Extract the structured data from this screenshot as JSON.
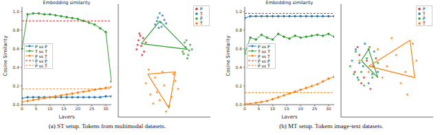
{
  "captions": [
    "(a) ST setup. Tokens from multimodal datasets.",
    "(b) MT setup. Tokens image-text datasets."
  ],
  "chart_data": [
    {
      "type": "line",
      "title": "Embedding similarity",
      "x_label": "Layers",
      "y_label": "Cosine Similarity",
      "legend": "center left",
      "grid": false,
      "x": [
        0,
        2,
        4,
        6,
        8,
        10,
        12,
        14,
        16,
        18,
        20,
        22,
        24,
        26,
        28,
        30,
        32
      ],
      "xlim": [
        0,
        32
      ],
      "xticks": [
        0,
        5,
        10,
        15,
        20,
        25,
        30
      ],
      "ylim": [
        0,
        1.05
      ],
      "yticks": [
        {
          "value": 0,
          "label": "0.0"
        },
        0.2,
        0.4,
        0.6,
        0.8,
        {
          "value": 1,
          "label": "1.0"
        }
      ],
      "series": [
        {
          "name": "P vs P",
          "color": "#1f77b4",
          "marker": "circle",
          "line_style": "solid",
          "values": [
            0.07,
            0.08,
            0.08,
            0.08,
            0.08,
            0.08,
            0.08,
            0.08,
            0.08,
            0.08,
            0.08,
            0.08,
            0.08,
            0.08,
            0.08,
            0.09,
            0.09
          ]
        },
        {
          "name": "T vs T",
          "color": "#2ca02c",
          "marker": "circle",
          "line_style": "solid",
          "values": [
            0.6,
            0.97,
            0.98,
            0.98,
            0.97,
            0.97,
            0.96,
            0.95,
            0.94,
            0.93,
            0.92,
            0.9,
            0.88,
            0.86,
            0.82,
            0.78,
            0.25
          ]
        },
        {
          "name": "P vs T",
          "color": "#ff7f0e",
          "marker": "circle",
          "line_style": "solid",
          "values": [
            0.03,
            0.04,
            0.05,
            0.06,
            0.07,
            0.08,
            0.09,
            0.1,
            0.11,
            0.12,
            0.13,
            0.14,
            0.15,
            0.16,
            0.17,
            0.18,
            0.19
          ]
        },
        {
          "name": "P̄ vs P̄",
          "color": "#d62728",
          "marker": "none",
          "line_style": "dashed",
          "values": [
            0.9,
            0.9,
            0.9,
            0.9,
            0.9,
            0.9,
            0.9,
            0.9,
            0.9,
            0.9,
            0.9,
            0.9,
            0.9,
            0.9,
            0.9,
            0.9,
            0.9
          ]
        },
        {
          "name": "P̄ vs T̄",
          "color": "#ff7f0e",
          "marker": "none",
          "line_style": "dashed",
          "values": [
            0.17,
            0.17,
            0.17,
            0.17,
            0.17,
            0.17,
            0.17,
            0.17,
            0.17,
            0.17,
            0.17,
            0.17,
            0.17,
            0.17,
            0.17,
            0.17,
            0.17
          ]
        }
      ]
    },
    {
      "type": "scatter",
      "legend": "upper right",
      "tick_labels": false,
      "xlim": [
        0,
        100
      ],
      "ylim": [
        0,
        100
      ],
      "series": [
        {
          "name": "P",
          "color": "#d62728",
          "x": [
            20,
            22,
            25,
            27,
            24,
            28,
            30,
            21,
            26,
            23
          ],
          "y": [
            60,
            68,
            63,
            70,
            72,
            58,
            66,
            64,
            55,
            74
          ]
        },
        {
          "name": "T",
          "color": "#1f77b4",
          "x": [
            40,
            43,
            46,
            48,
            44,
            50,
            42,
            47,
            45,
            52
          ],
          "y": [
            82,
            88,
            84,
            90,
            79,
            86,
            85,
            80,
            92,
            83
          ]
        },
        {
          "name": "P̄",
          "color": "#2ca02c",
          "x": [
            70,
            73,
            76,
            78,
            72,
            80,
            75,
            74,
            77,
            71
          ],
          "y": [
            58,
            62,
            55,
            64,
            66,
            60,
            52,
            68,
            59,
            56
          ]
        },
        {
          "name": "T̄",
          "color": "#ff7f0e",
          "x": [
            30,
            35,
            40,
            45,
            50,
            55,
            60,
            65,
            38,
            48,
            58,
            52,
            42,
            62,
            33
          ],
          "y": [
            30,
            20,
            35,
            15,
            28,
            10,
            38,
            25,
            12,
            40,
            18,
            5,
            22,
            32,
            42
          ]
        }
      ],
      "links": [
        {
          "color": "#2ca02c",
          "x": [
            25,
            45,
            75,
            25
          ],
          "y": [
            65,
            85,
            60,
            65
          ]
        },
        {
          "color": "#ff7f0e",
          "x": [
            32,
            55,
            62,
            32
          ],
          "y": [
            38,
            8,
            40,
            38
          ]
        }
      ]
    },
    {
      "type": "line",
      "title": "Embedding similarity",
      "x_label": "Layers",
      "y_label": "Cosine Similarity",
      "legend": "center left",
      "grid": false,
      "x": [
        0,
        2,
        4,
        6,
        8,
        10,
        12,
        14,
        16,
        18,
        20,
        22,
        24,
        26,
        28,
        30,
        32
      ],
      "xlim": [
        0,
        32
      ],
      "xticks": [
        0,
        5,
        10,
        15,
        20,
        25,
        30
      ],
      "ylim": [
        0,
        1.05
      ],
      "yticks": [
        {
          "value": 0,
          "label": "0.0"
        },
        0.2,
        0.4,
        0.6,
        0.8,
        {
          "value": 1,
          "label": "1.0"
        }
      ],
      "series": [
        {
          "name": "P vs P",
          "color": "#1f77b4",
          "marker": "circle",
          "line_style": "solid",
          "values": [
            0.93,
            0.95,
            0.95,
            0.95,
            0.95,
            0.95,
            0.95,
            0.95,
            0.95,
            0.95,
            0.95,
            0.95,
            0.95,
            0.95,
            0.95,
            0.95,
            0.95
          ]
        },
        {
          "name": "T vs T",
          "color": "#2ca02c",
          "marker": "circle",
          "line_style": "solid",
          "values": [
            0.55,
            0.72,
            0.7,
            0.75,
            0.72,
            0.7,
            0.76,
            0.73,
            0.71,
            0.74,
            0.72,
            0.73,
            0.74,
            0.75,
            0.74,
            0.76,
            0.73
          ]
        },
        {
          "name": "P vs T",
          "color": "#ff7f0e",
          "marker": "circle",
          "line_style": "solid",
          "values": [
            0.01,
            0.01,
            0.02,
            0.03,
            0.04,
            0.06,
            0.08,
            0.1,
            0.12,
            0.14,
            0.16,
            0.18,
            0.2,
            0.22,
            0.25,
            0.28,
            0.3
          ]
        },
        {
          "name": "P̄ vs P̄",
          "color": "#d62728",
          "marker": "none",
          "line_style": "dashed",
          "values": [
            0.98,
            0.98,
            0.98,
            0.98,
            0.98,
            0.98,
            0.98,
            0.98,
            0.98,
            0.98,
            0.98,
            0.98,
            0.98,
            0.98,
            0.98,
            0.98,
            0.98
          ]
        },
        {
          "name": "P̄ vs T̄",
          "color": "#ff7f0e",
          "marker": "none",
          "line_style": "dashed",
          "values": [
            0.13,
            0.13,
            0.13,
            0.13,
            0.13,
            0.13,
            0.13,
            0.13,
            0.13,
            0.13,
            0.13,
            0.13,
            0.13,
            0.13,
            0.13,
            0.13,
            0.13
          ]
        }
      ]
    },
    {
      "type": "scatter",
      "legend": "upper right",
      "tick_labels": false,
      "xlim": [
        0,
        100
      ],
      "ylim": [
        0,
        100
      ],
      "series": [
        {
          "name": "P",
          "color": "#d62728",
          "x": [
            15,
            20,
            25,
            30,
            35,
            22,
            28,
            18,
            32,
            38
          ],
          "y": [
            40,
            55,
            35,
            60,
            45,
            30,
            50,
            62,
            25,
            52
          ]
        },
        {
          "name": "T",
          "color": "#1f77b4",
          "x": [
            12,
            18,
            24,
            30,
            36,
            40,
            26,
            20,
            34,
            16
          ],
          "y": [
            50,
            35,
            45,
            30,
            58,
            40,
            65,
            48,
            38,
            60
          ]
        },
        {
          "name": "P̄",
          "color": "#2ca02c",
          "x": [
            10,
            16,
            22,
            28,
            34,
            40,
            25,
            19,
            31,
            14
          ],
          "y": [
            45,
            58,
            40,
            52,
            35,
            48,
            28,
            33,
            62,
            38
          ]
        },
        {
          "name": "T̄",
          "color": "#ff7f0e",
          "x": [
            20,
            30,
            40,
            50,
            60,
            70,
            78,
            65,
            55,
            45,
            82,
            72
          ],
          "y": [
            50,
            40,
            60,
            45,
            55,
            40,
            65,
            30,
            70,
            35,
            50,
            20
          ]
        }
      ],
      "links": [
        {
          "color": "#2ca02c",
          "x": [
            22,
            40,
            30,
            22
          ],
          "y": [
            50,
            35,
            60,
            50
          ]
        },
        {
          "color": "#ff7f0e",
          "x": [
            30,
            75,
            80,
            30
          ],
          "y": [
            45,
            68,
            35,
            45
          ]
        }
      ]
    }
  ]
}
